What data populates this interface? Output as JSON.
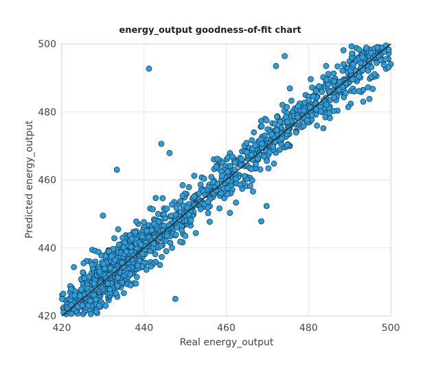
{
  "chart_data": {
    "type": "scatter",
    "title": "energy_output goodness-of-fit chart",
    "xlabel": "Real energy_output",
    "ylabel": "Predicted energy_output",
    "xlim": [
      420,
      500
    ],
    "ylim": [
      420,
      500
    ],
    "xticks": [
      "420",
      "440",
      "460",
      "480",
      "500"
    ],
    "yticks": [
      "420",
      "440",
      "460",
      "480",
      "500"
    ],
    "grid": true,
    "point_color": "#2b9fd9",
    "point_edge_color": "#1b3a5a",
    "fit_line": {
      "from": [
        420,
        420
      ],
      "to": [
        500,
        500
      ],
      "color": "#333333"
    },
    "cloud_model": {
      "x_range": [
        420,
        500
      ],
      "density_peak_x": 432,
      "bias_above_diagonal": 0.6,
      "spread_sd": 3.6,
      "n_points": 1500
    },
    "outliers": [
      [
        441.2,
        492.7
      ],
      [
        433.4,
        463.0
      ],
      [
        469.8,
        452.3
      ],
      [
        468.5,
        447.8
      ],
      [
        474.2,
        496.4
      ],
      [
        472.1,
        493.5
      ],
      [
        494.8,
        483.8
      ],
      [
        493.3,
        483.0
      ],
      [
        487.4,
        486.5
      ],
      [
        483.6,
        475.2
      ],
      [
        444.2,
        470.6
      ],
      [
        446.2,
        467.9
      ],
      [
        430.0,
        449.5
      ],
      [
        447.6,
        425.0
      ],
      [
        452.2,
        461.2
      ]
    ]
  }
}
